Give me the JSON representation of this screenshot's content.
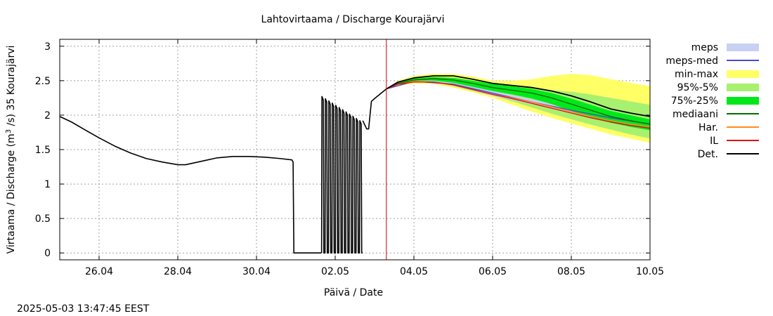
{
  "timestamp": "2025-05-03 13:47:45 EEST",
  "chart_data": {
    "type": "area",
    "title": "Lahtovirtaama / Discharge  Kourajärvi",
    "xlabel": "Päivä / Date",
    "ylabel": "Virtaama / Discharge (m³/s)  35 Kourajärvi",
    "ylabel_parts": {
      "prefix": "Virtaama / Discharge (m",
      "sup": "3",
      "suffix": " /s)  35 Kourajärvi"
    },
    "x_start": "2025-04-25",
    "xlim": [
      0,
      15
    ],
    "ylim": [
      -0.1,
      3.1
    ],
    "grid": true,
    "x_ticks": [
      {
        "x": 1,
        "label": "26.04"
      },
      {
        "x": 3,
        "label": "28.04"
      },
      {
        "x": 5,
        "label": "30.04"
      },
      {
        "x": 7,
        "label": "02.05"
      },
      {
        "x": 9,
        "label": "04.05"
      },
      {
        "x": 11,
        "label": "06.05"
      },
      {
        "x": 13,
        "label": "08.05"
      },
      {
        "x": 15,
        "label": "10.05"
      }
    ],
    "y_ticks": [
      {
        "y": 0,
        "label": "0"
      },
      {
        "y": 0.5,
        "label": "0.5"
      },
      {
        "y": 1,
        "label": "1"
      },
      {
        "y": 1.5,
        "label": "1.5"
      },
      {
        "y": 2,
        "label": "2"
      },
      {
        "y": 2.5,
        "label": "2.5"
      },
      {
        "y": 3,
        "label": "3"
      }
    ],
    "forecast_start": 8.3,
    "legend_position": "right",
    "legend": [
      {
        "label": "meps",
        "kind": "box",
        "color": "#c8d0f4"
      },
      {
        "label": "meps-med",
        "kind": "line",
        "color": "#4b4bc8"
      },
      {
        "label": "min-max",
        "kind": "box",
        "color": "#ffff66"
      },
      {
        "label": "95%-5%",
        "kind": "box",
        "color": "#a8f070"
      },
      {
        "label": "75%-25%",
        "kind": "box",
        "color": "#00e81a"
      },
      {
        "label": "mediaani",
        "kind": "line",
        "color": "#007000"
      },
      {
        "label": "Har.",
        "kind": "line",
        "color": "#ff8c1a"
      },
      {
        "label": "IL",
        "kind": "line",
        "color": "#e01010"
      },
      {
        "label": "Det.",
        "kind": "line",
        "color": "#000000"
      }
    ],
    "forecast_x": [
      8.3,
      8.6,
      9.0,
      9.5,
      10.0,
      10.5,
      11.0,
      11.5,
      12.0,
      12.5,
      13.0,
      13.5,
      14.0,
      14.5,
      15.0
    ],
    "series": [
      {
        "name": "min-max",
        "kind": "band",
        "color": "#ffff66",
        "lower": [
          2.38,
          2.42,
          2.46,
          2.45,
          2.4,
          2.33,
          2.25,
          2.15,
          2.05,
          1.96,
          1.88,
          1.8,
          1.72,
          1.66,
          1.6
        ],
        "upper": [
          2.38,
          2.5,
          2.57,
          2.6,
          2.6,
          2.56,
          2.5,
          2.5,
          2.52,
          2.57,
          2.6,
          2.58,
          2.52,
          2.47,
          2.42
        ]
      },
      {
        "name": "95%-5%",
        "kind": "band",
        "color": "#a8f070",
        "lower": [
          2.38,
          2.44,
          2.48,
          2.47,
          2.42,
          2.35,
          2.28,
          2.2,
          2.11,
          2.02,
          1.94,
          1.86,
          1.79,
          1.72,
          1.66
        ],
        "upper": [
          2.38,
          2.48,
          2.54,
          2.56,
          2.55,
          2.5,
          2.46,
          2.42,
          2.39,
          2.36,
          2.34,
          2.3,
          2.25,
          2.2,
          2.15
        ]
      },
      {
        "name": "meps",
        "kind": "band",
        "color": "#c8d0f4",
        "lower": [
          2.38,
          2.44,
          2.48,
          2.47,
          2.43,
          2.36,
          2.28,
          2.22,
          2.16,
          2.1,
          2.04,
          1.98,
          1.93,
          1.88,
          1.84
        ],
        "upper": [
          2.38,
          2.46,
          2.5,
          2.5,
          2.47,
          2.41,
          2.35,
          2.29,
          2.23,
          2.17,
          2.11,
          2.05,
          2.0,
          1.95,
          1.9
        ]
      },
      {
        "name": "75%-25%",
        "kind": "band",
        "color": "#00e81a",
        "lower": [
          2.38,
          2.45,
          2.5,
          2.5,
          2.47,
          2.41,
          2.35,
          2.3,
          2.24,
          2.16,
          2.06,
          1.97,
          1.89,
          1.83,
          1.78
        ],
        "upper": [
          2.38,
          2.47,
          2.53,
          2.55,
          2.54,
          2.5,
          2.45,
          2.42,
          2.38,
          2.32,
          2.24,
          2.15,
          2.06,
          2.0,
          1.94
        ]
      },
      {
        "name": "meps-med",
        "kind": "line",
        "color": "#4b4bc8",
        "x": [
          8.3,
          9.0,
          10.0,
          11.0,
          12.0,
          13.0,
          14.0,
          15.0
        ],
        "values": [
          2.38,
          2.49,
          2.45,
          2.32,
          2.19,
          2.07,
          1.96,
          1.87
        ]
      },
      {
        "name": "mediaani",
        "kind": "line",
        "color": "#007000",
        "values": [
          2.38,
          2.46,
          2.51,
          2.53,
          2.51,
          2.46,
          2.4,
          2.36,
          2.32,
          2.25,
          2.16,
          2.07,
          1.98,
          1.92,
          1.87
        ]
      },
      {
        "name": "Har.",
        "kind": "line",
        "color": "#ff8c1a",
        "values": [
          2.38,
          2.45,
          2.49,
          2.48,
          2.44,
          2.37,
          2.3,
          2.25,
          2.19,
          2.12,
          2.05,
          1.98,
          1.92,
          1.87,
          1.83
        ]
      },
      {
        "name": "IL",
        "kind": "line",
        "color": "#e01010",
        "values": [
          2.38,
          2.45,
          2.48,
          2.48,
          2.44,
          2.37,
          2.3,
          2.24,
          2.17,
          2.1,
          2.03,
          1.96,
          1.9,
          1.85,
          1.81
        ]
      },
      {
        "name": "Det.",
        "kind": "line",
        "color": "#000000",
        "values": [
          2.38,
          2.48,
          2.54,
          2.57,
          2.57,
          2.52,
          2.46,
          2.43,
          2.4,
          2.35,
          2.28,
          2.19,
          2.09,
          2.03,
          1.98
        ]
      }
    ],
    "observed": {
      "name": "Det.",
      "color": "#000000",
      "x": [
        0.0,
        0.3,
        0.6,
        1.0,
        1.4,
        1.8,
        2.2,
        2.6,
        3.0,
        3.2,
        3.6,
        4.0,
        4.4,
        4.8,
        5.2,
        5.6,
        5.9,
        5.93,
        5.95,
        6.6,
        6.65
      ],
      "values": [
        1.98,
        1.9,
        1.8,
        1.67,
        1.55,
        1.45,
        1.37,
        1.32,
        1.28,
        1.28,
        1.33,
        1.38,
        1.4,
        1.4,
        1.39,
        1.37,
        1.35,
        1.32,
        0.0,
        0.0,
        0.0
      ]
    },
    "oscillation": {
      "x_start": 6.65,
      "x_end": 7.7,
      "cycles": 12,
      "low": 0.0,
      "peaks_start": 2.27,
      "peaks_end": 1.92
    },
    "observed_tail": {
      "x": [
        7.7,
        7.8,
        7.85,
        7.92,
        8.0,
        8.15,
        8.3
      ],
      "values": [
        1.92,
        1.8,
        1.8,
        2.2,
        2.24,
        2.31,
        2.38
      ]
    }
  }
}
